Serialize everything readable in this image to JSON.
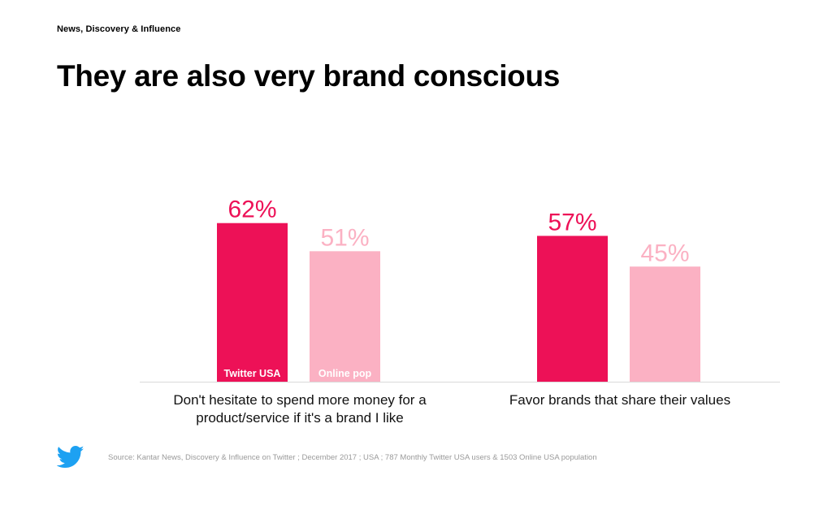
{
  "header": {
    "section": "News, Discovery & Influence",
    "title": "They are also very brand conscious"
  },
  "footer": {
    "source": "Source: Kantar News, Discovery & Influence on Twitter ; December 2017 ; USA ; 787 Monthly Twitter USA users & 1503 Online USA population",
    "logo_icon": "twitter-bird-icon"
  },
  "colors": {
    "twitter_usa": "#ED1157",
    "online_pop": "#FBB1C3",
    "baseline": "#d9d9d9"
  },
  "chart_data": {
    "type": "bar",
    "categories": [
      "Don't hesitate to spend more money for a product/service if it's a brand I like",
      "Favor brands that share their values"
    ],
    "series": [
      {
        "name": "Twitter USA",
        "values": [
          62,
          57
        ],
        "labels": [
          "62%",
          "57%"
        ]
      },
      {
        "name": "Online pop",
        "values": [
          51,
          45
        ],
        "labels": [
          "51%",
          "45%"
        ]
      }
    ],
    "title": "They are also very brand conscious",
    "xlabel": "",
    "ylabel": "",
    "ylim": [
      0,
      100
    ],
    "grid": false,
    "legend": "inside-bars"
  }
}
